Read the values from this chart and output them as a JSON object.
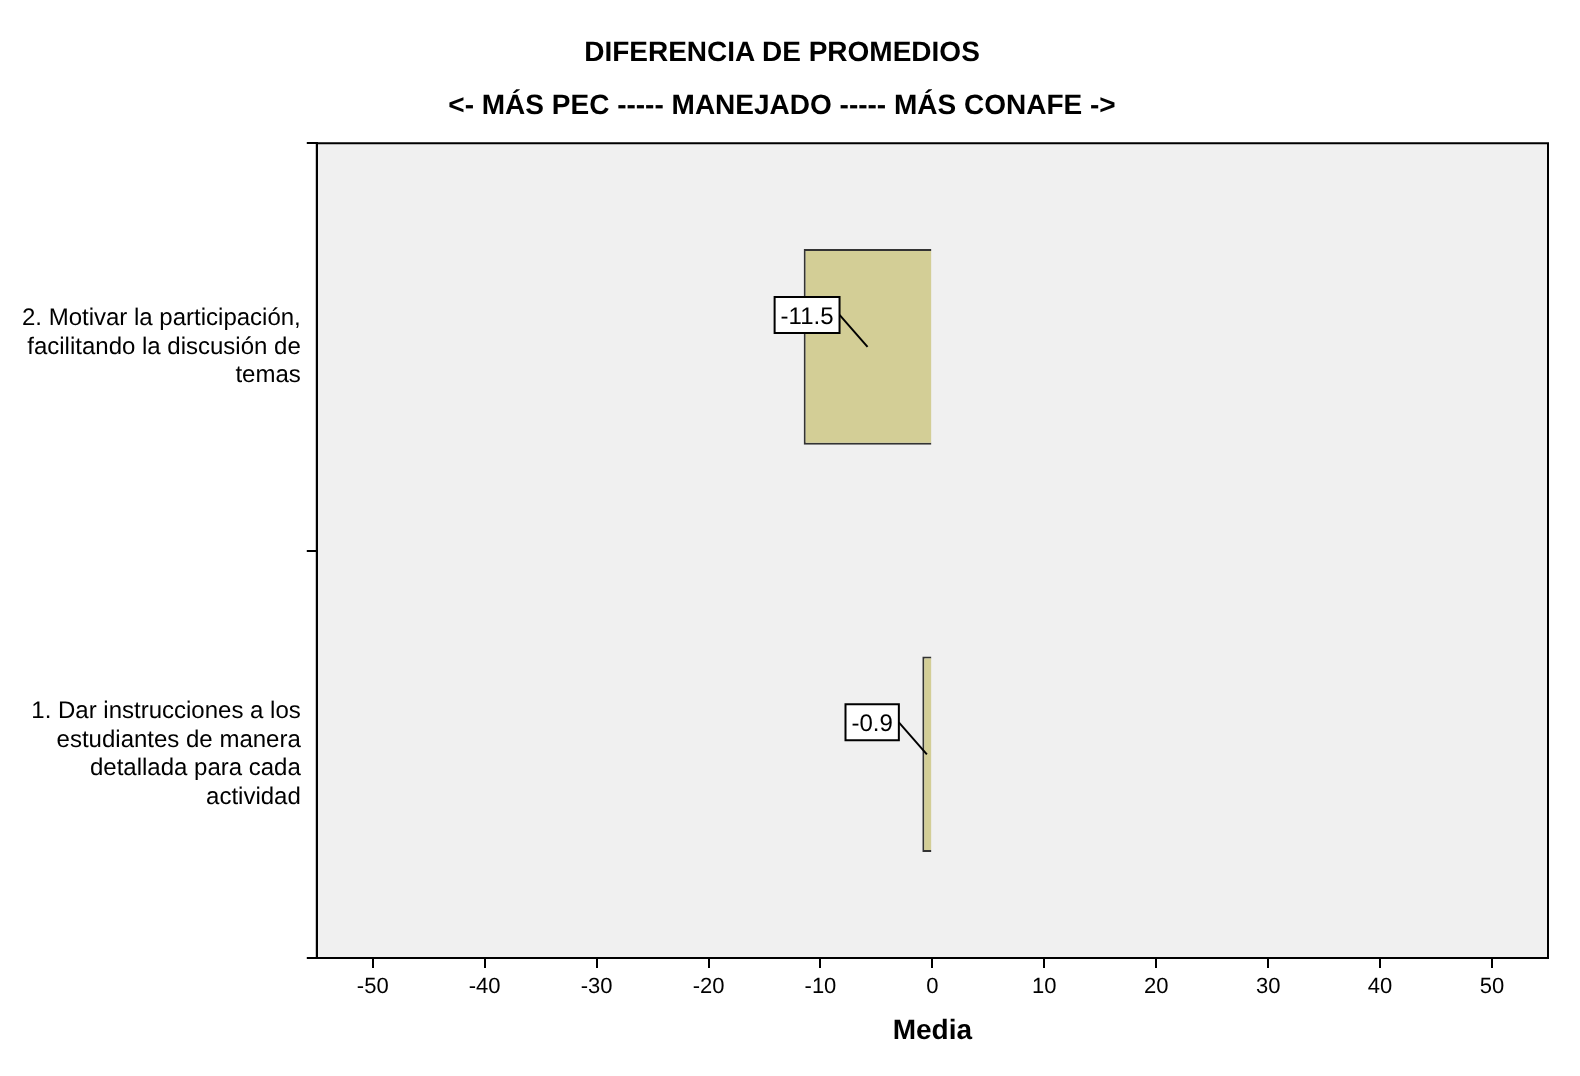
{
  "chart_data": {
    "type": "bar",
    "orientation": "horizontal",
    "title": "DIFERENCIA DE PROMEDIOS",
    "subtitle": "<- MÁS PEC ----- MANEJADO ----- MÁS CONAFE ->",
    "xlabel": "Media",
    "categories": [
      "2. Motivar la participación, facilitando la discusión de temas",
      "1. Dar instrucciones a los estudiantes de manera detallada para cada actividad"
    ],
    "values": [
      -11.5,
      -0.9
    ],
    "color": "#d3ce96",
    "xlim": [
      -55,
      55
    ],
    "xticks": [
      -50,
      -40,
      -30,
      -20,
      -10,
      0,
      10,
      20,
      30,
      40,
      50
    ],
    "data_labels": true,
    "grid": false,
    "legend": false
  }
}
